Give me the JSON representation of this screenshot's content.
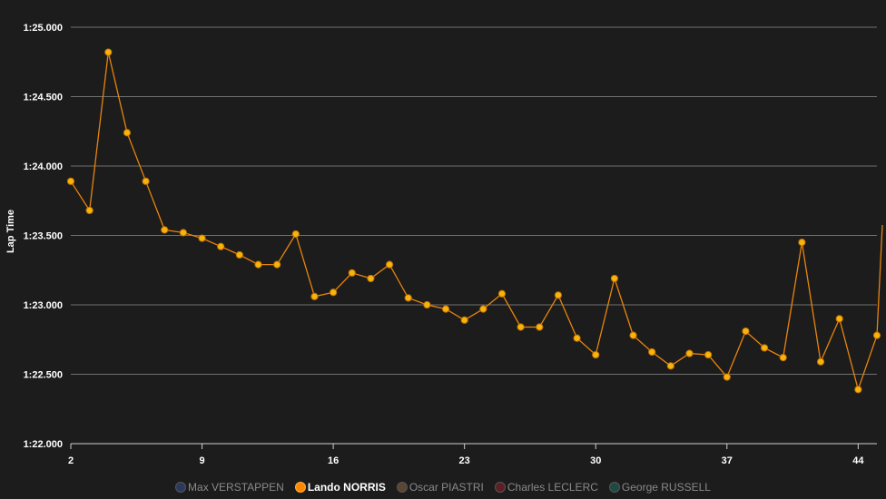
{
  "chart_data": {
    "type": "line",
    "title": "",
    "xlabel": "",
    "ylabel": "Lap Time",
    "x_ticks": [
      "2",
      "9",
      "16",
      "23",
      "30",
      "37",
      "44"
    ],
    "y_ticks": [
      "1:22.000",
      "1:22.500",
      "1:23.000",
      "1:23.500",
      "1:24.000",
      "1:24.500",
      "1:25.000"
    ],
    "ylim": [
      82.0,
      85.0
    ],
    "xlim": [
      2,
      45
    ],
    "grid": true,
    "legend_position": "bottom",
    "series": [
      {
        "name": "Lando NORRIS",
        "color": "#e8840c",
        "marker_color": "#f5b50c",
        "x": [
          2,
          3,
          4,
          5,
          6,
          7,
          8,
          9,
          10,
          11,
          12,
          13,
          14,
          15,
          16,
          17,
          18,
          19,
          20,
          21,
          22,
          23,
          24,
          25,
          26,
          27,
          28,
          29,
          30,
          31,
          32,
          33,
          34,
          35,
          36,
          37,
          38,
          39,
          40,
          41,
          42,
          43,
          44,
          45
        ],
        "values": [
          83.89,
          83.68,
          84.82,
          84.24,
          83.89,
          83.54,
          83.52,
          83.48,
          83.42,
          83.36,
          83.29,
          83.29,
          83.51,
          83.06,
          83.09,
          83.23,
          83.19,
          83.29,
          83.05,
          83.0,
          82.97,
          82.89,
          82.97,
          83.08,
          82.84,
          82.84,
          83.07,
          82.76,
          82.64,
          83.19,
          82.78,
          82.66,
          82.56,
          82.65,
          82.64,
          82.48,
          82.81,
          82.69,
          82.62,
          83.45,
          82.59,
          82.9,
          82.39,
          82.78
        ]
      }
    ],
    "legend": [
      {
        "name": "Max VERSTAPPEN",
        "color": "#2b3a5c",
        "active": false
      },
      {
        "name": "Lando NORRIS",
        "color": "#ff8700",
        "active": true
      },
      {
        "name": "Oscar PIASTRI",
        "color": "#5a4632",
        "active": false
      },
      {
        "name": "Charles LECLERC",
        "color": "#5e1f24",
        "active": false
      },
      {
        "name": "George RUSSELL",
        "color": "#1f4a44",
        "active": false
      }
    ]
  }
}
